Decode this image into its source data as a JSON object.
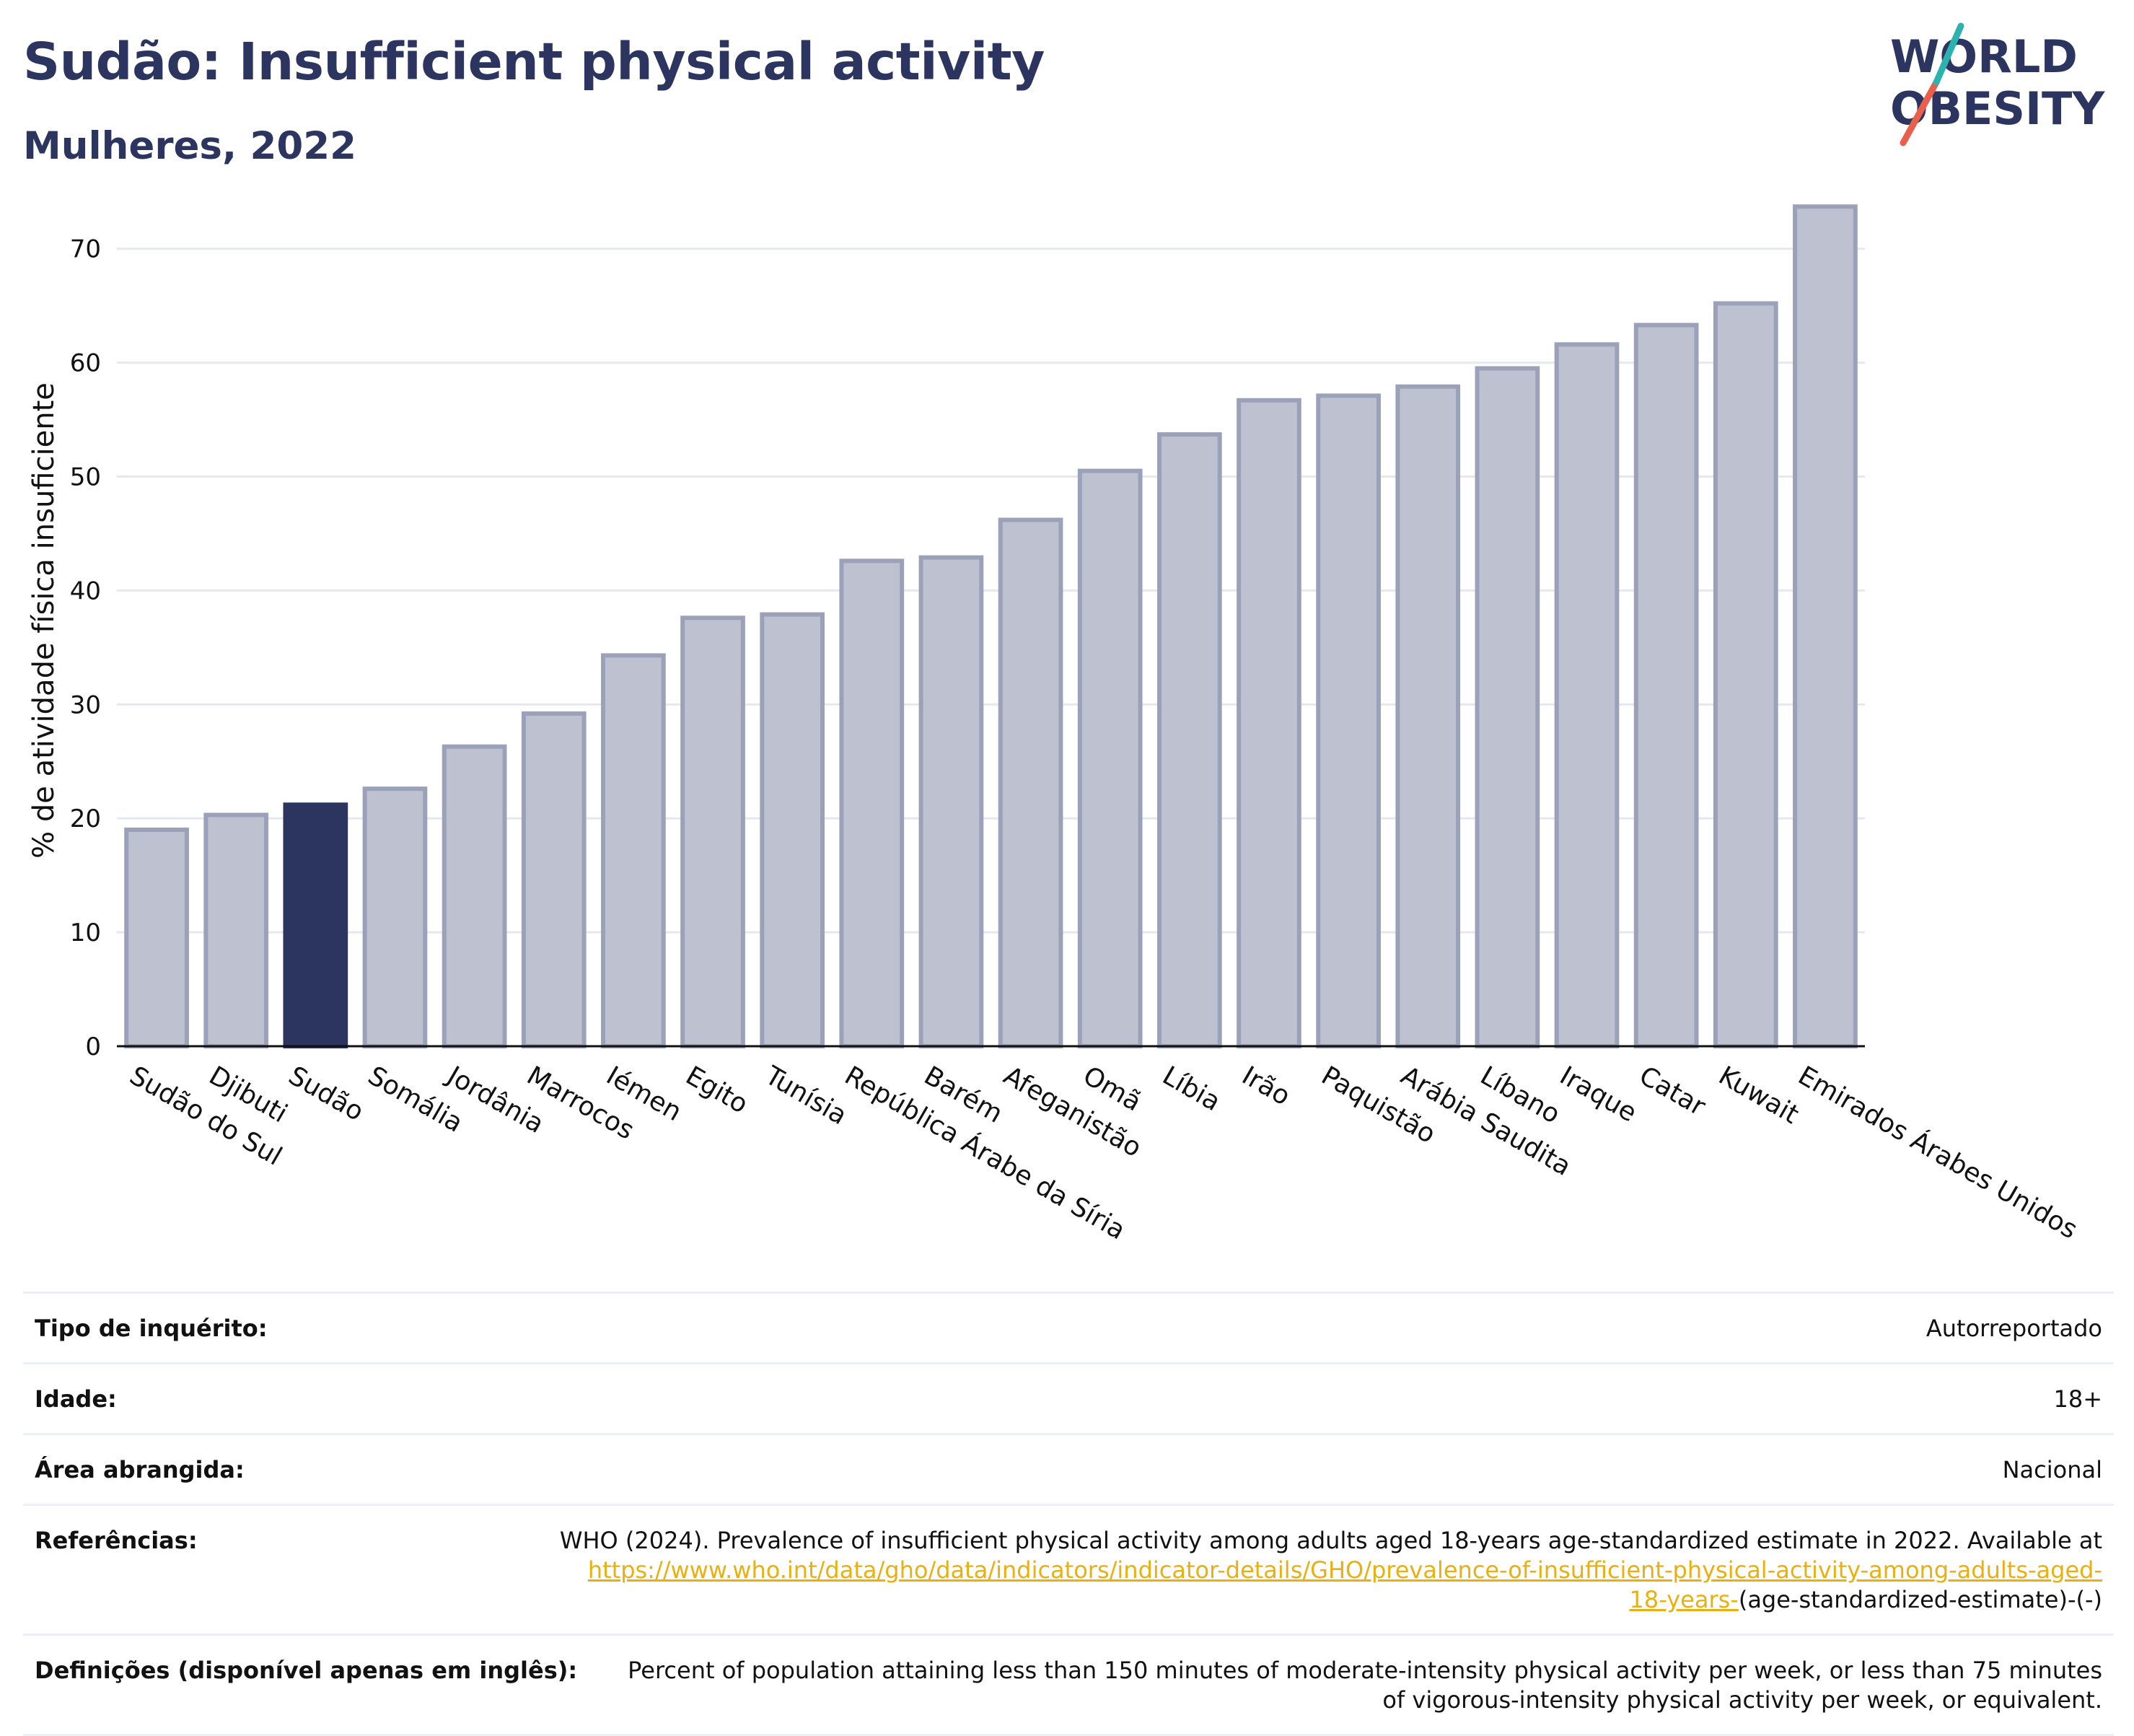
{
  "title": "Sudão: Insufficient physical activity",
  "subtitle": "Mulheres, 2022",
  "logo": {
    "line1": "WORLD",
    "line2": "OBESITY",
    "colors": [
      "#e8604c",
      "#2cb3b0",
      "#2c3560"
    ]
  },
  "colors": {
    "bar": "#bec2d0",
    "bar_edge": "#9ba1b8",
    "highlight": "#2c3560",
    "text": "#2c3560"
  },
  "chart_data": {
    "type": "bar",
    "title": "Sudão: Insufficient physical activity",
    "subtitle": "Mulheres, 2022",
    "xlabel": "",
    "ylabel": "% de atividade física insuficiente",
    "ylim": [
      0,
      76
    ],
    "yticks": [
      0,
      10,
      20,
      30,
      40,
      50,
      60,
      70
    ],
    "grid": true,
    "highlight": "Sudão",
    "categories": [
      "Sudão do Sul",
      "Djibuti",
      "Sudão",
      "Somália",
      "Jordânia",
      "Marrocos",
      "Iémen",
      "Egito",
      "Tunísia",
      "República Árabe da Síria",
      "Barém",
      "Afeganistão",
      "Omã",
      "Líbia",
      "Irão",
      "Paquistão",
      "Arábia Saudita",
      "Líbano",
      "Iraque",
      "Catar",
      "Kuwait",
      "Emirados Árabes Unidos"
    ],
    "values": [
      19.0,
      20.3,
      21.2,
      22.6,
      26.3,
      29.2,
      34.3,
      37.6,
      37.9,
      42.6,
      42.9,
      46.2,
      50.5,
      53.7,
      56.7,
      57.1,
      57.9,
      59.5,
      61.6,
      63.3,
      65.2,
      73.7
    ]
  },
  "info": {
    "survey_type_label": "Tipo de inquérito:",
    "survey_type_value": "Autorreportado",
    "age_label": "Idade:",
    "age_value": "18+",
    "area_label": "Área abrangida:",
    "area_value": "Nacional",
    "references_label": "Referências:",
    "references_text": "WHO (2024). Prevalence of insufficient physical activity among adults aged 18-years age-standardized estimate in 2022. Available at",
    "references_link": "https://www.who.int/data/gho/data/indicators/indicator-details/GHO/prevalence-of-insufficient-physical-activity-among-adults-aged-18-years-",
    "references_suffix": "(age-standardized-estimate)-(-)",
    "definitions_label": "Definições (disponível apenas em inglês):",
    "definitions_text": "Percent of population attaining less than 150 minutes of moderate-intensity physical activity per week, or less than 75 minutes of vigorous-intensity physical activity per week, or equivalent."
  }
}
